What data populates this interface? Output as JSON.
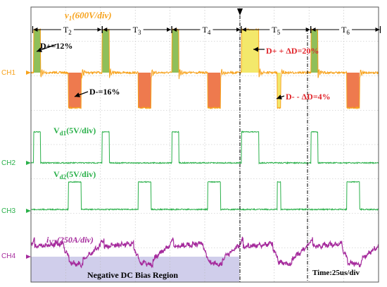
{
  "chart_data": {
    "type": "line",
    "time_scale": "Time:25us/div",
    "period_labels": [
      "T2",
      "T3",
      "T4",
      "T5",
      "T6"
    ],
    "region_label": "Negative DC Bias Region",
    "channels": [
      {
        "id": "CH1",
        "label": "CH1",
        "signal_base": "v",
        "signal_sub": "1",
        "signal_scale": "(600V/div)",
        "color": "#f7a21b",
        "annotations": [
          {
            "text": "D+=12%",
            "color": "#000000"
          },
          {
            "text": "D-=16%",
            "color": "#000000"
          },
          {
            "text": "D+ + ΔD=20%",
            "color": "#e0242a"
          },
          {
            "text": "D- - ΔD=4%",
            "color": "#e0242a"
          }
        ],
        "positive_pulses": [
          {
            "start_div": 0.08,
            "end_div": 0.28
          },
          {
            "start_div": 2.05,
            "end_div": 2.25
          },
          {
            "start_div": 4.05,
            "end_div": 4.25
          },
          {
            "start_div": 6.05,
            "end_div": 6.55
          },
          {
            "start_div": 8.05,
            "end_div": 8.25
          }
        ],
        "negative_pulses": [
          {
            "start_div": 1.08,
            "end_div": 1.45
          },
          {
            "start_div": 3.08,
            "end_div": 3.45
          },
          {
            "start_div": 5.08,
            "end_div": 5.45
          },
          {
            "start_div": 7.08,
            "end_div": 7.18
          },
          {
            "start_div": 9.08,
            "end_div": 9.45
          }
        ]
      },
      {
        "id": "CH2",
        "label": "CH2",
        "signal_base": "V",
        "signal_sub": "d1",
        "signal_scale": "(5V/div)",
        "color": "#2ab04a",
        "pulses": [
          {
            "start_div": 0.08,
            "end_div": 0.28
          },
          {
            "start_div": 2.05,
            "end_div": 2.25
          },
          {
            "start_div": 4.05,
            "end_div": 4.25
          },
          {
            "start_div": 6.05,
            "end_div": 6.55
          },
          {
            "start_div": 8.05,
            "end_div": 8.25
          }
        ]
      },
      {
        "id": "CH3",
        "label": "CH3",
        "signal_base": "V",
        "signal_sub": "d2",
        "signal_scale": "(5V/div)",
        "color": "#2ab04a",
        "pulses": [
          {
            "start_div": 1.08,
            "end_div": 1.45
          },
          {
            "start_div": 3.08,
            "end_div": 3.45
          },
          {
            "start_div": 5.08,
            "end_div": 5.45
          },
          {
            "start_div": 7.08,
            "end_div": 7.18
          },
          {
            "start_div": 9.08,
            "end_div": 9.45
          }
        ]
      },
      {
        "id": "CH4",
        "label": "CH4",
        "signal_base": "i",
        "signal_sub": "VT",
        "signal_scale": "(250A/div)",
        "color": "#a52a9c"
      }
    ],
    "x_divisions": 10,
    "y_divisions": 8,
    "grid": true
  }
}
